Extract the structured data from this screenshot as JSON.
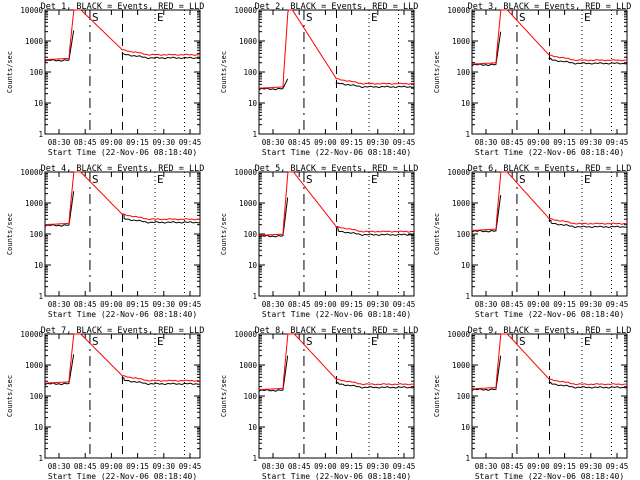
{
  "chart_data": {
    "type": "line",
    "y_scale": "log",
    "ylim": [
      1,
      10000
    ],
    "y_ticks": [
      1,
      10,
      100,
      1000,
      10000
    ],
    "y_tick_labels": [
      "1",
      "10",
      "100",
      "1000",
      "10000"
    ],
    "x_tick_labels": [
      "08:30",
      "08:45",
      "09:00",
      "09:15",
      "09:30",
      "09:45"
    ],
    "xlabel": "Start Time (22-Nov-06 08:18:40)",
    "ylabel": "Counts/sec",
    "legend": "BLACK = Events, RED = LLD",
    "markers": [
      {
        "label": "S",
        "x": 0.29
      },
      {
        "label": "E",
        "x": 0.71
      }
    ],
    "colors": {
      "events": "#000000",
      "lld": "#ff0000"
    },
    "panels": [
      {
        "title": "Det 1, BLACK = Events, RED = LLD",
        "start": 250,
        "spike": 350,
        "end": 300,
        "peak": 10000,
        "events_peak": 2200
      },
      {
        "title": "Det 2, BLACK = Events, RED = LLD",
        "start": 30,
        "spike": 40,
        "end": 35,
        "peak": 10000,
        "events_peak": 60
      },
      {
        "title": "Det 3, BLACK = Events, RED = LLD",
        "start": 180,
        "spike": 250,
        "end": 200,
        "peak": 10000,
        "events_peak": 2000
      },
      {
        "title": "Det 4, BLACK = Events, RED = LLD",
        "start": 200,
        "spike": 400,
        "end": 250,
        "peak": 10000,
        "events_peak": 2400
      },
      {
        "title": "Det 5, BLACK = Events, RED = LLD",
        "start": 90,
        "spike": 150,
        "end": 100,
        "peak": 10000,
        "events_peak": 1500
      },
      {
        "title": "Det 6, BLACK = Events, RED = LLD",
        "start": 130,
        "spike": 250,
        "end": 180,
        "peak": 10000,
        "events_peak": 1800
      },
      {
        "title": "Det 7, BLACK = Events, RED = LLD",
        "start": 260,
        "spike": 350,
        "end": 260,
        "peak": 10000,
        "events_peak": 2200
      },
      {
        "title": "Det 8, BLACK = Events, RED = LLD",
        "start": 160,
        "spike": 250,
        "end": 200,
        "peak": 10000,
        "events_peak": 2000
      },
      {
        "title": "Det 9, BLACK = Events, RED = LLD",
        "start": 170,
        "spike": 250,
        "end": 200,
        "peak": 10000,
        "events_peak": 2000
      }
    ]
  }
}
